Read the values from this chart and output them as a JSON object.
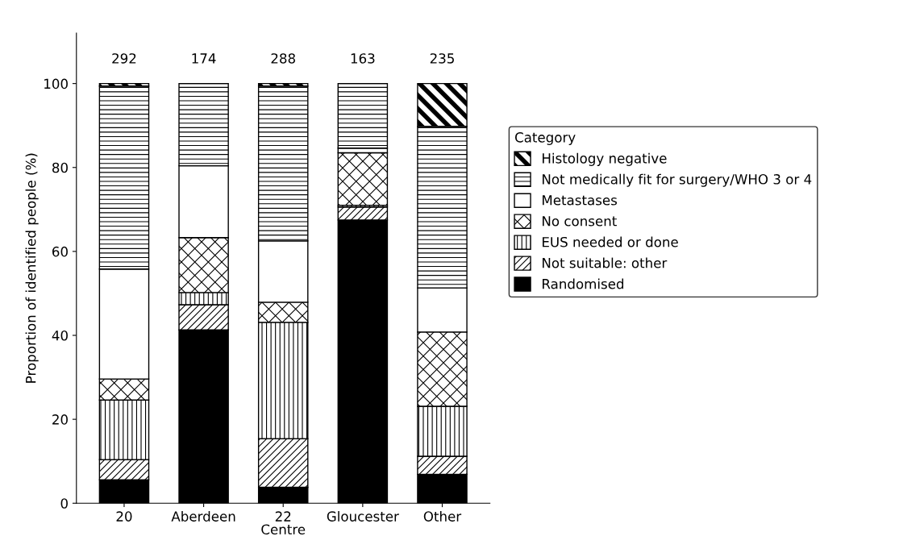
{
  "chart_data": {
    "type": "bar",
    "stacked": true,
    "xlabel": "Centre",
    "ylabel": "Proportion of identified people (%)",
    "legend_title": "Category",
    "legend": "right",
    "categories": [
      "20",
      "Aberdeen",
      "22",
      "Gloucester",
      "Other"
    ],
    "series": [
      {
        "name": "Randomised",
        "color": "#000000",
        "values": [
          5.6,
          41.3,
          3.8,
          67.5,
          6.9
        ]
      },
      {
        "name": "Not suitable: other",
        "color": "#000000",
        "values": [
          4.8,
          6.0,
          11.6,
          3.1,
          4.3
        ]
      },
      {
        "name": "EUS needed or done",
        "color": "#000000",
        "values": [
          14.2,
          2.9,
          27.7,
          0.4,
          11.9
        ]
      },
      {
        "name": "No consent",
        "color": "#000000",
        "values": [
          5.0,
          13.1,
          4.8,
          12.5,
          17.7
        ]
      },
      {
        "name": "Metastases",
        "color": "#ffffff",
        "values": [
          26.2,
          17.1,
          14.6,
          1.1,
          10.5
        ]
      },
      {
        "name": "Not medically fit for surgery/WHO 3 or 4",
        "color": "#000000",
        "values": [
          43.6,
          19.6,
          36.9,
          15.4,
          38.5
        ]
      },
      {
        "name": "Histology negative",
        "color": "#000000",
        "values": [
          0.6,
          0,
          0.6,
          0,
          10.2
        ]
      }
    ],
    "annotations": [
      "292",
      "174",
      "288",
      "163",
      "235"
    ],
    "ylim": [
      0,
      112
    ],
    "yticks": [
      0,
      20,
      40,
      60,
      80,
      100
    ],
    "grid": false
  }
}
